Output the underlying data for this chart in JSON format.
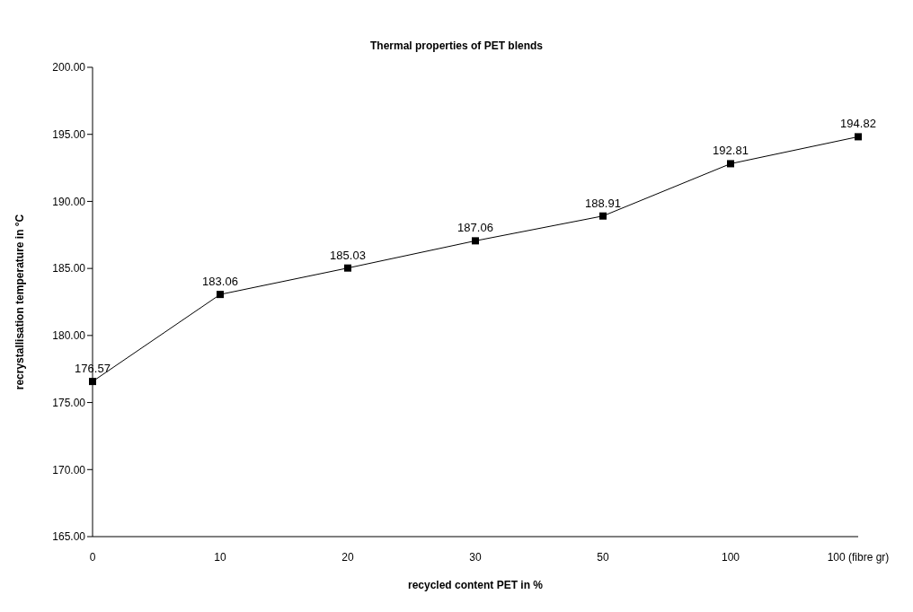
{
  "chart_data": {
    "type": "line",
    "title": "Thermal properties of PET blends",
    "xlabel": "recycled content PET in %",
    "ylabel": "recrystallisation temperature in °C",
    "categories": [
      "0",
      "10",
      "20",
      "30",
      "50",
      "100",
      "100 (fibre gr)"
    ],
    "series": [
      {
        "color": "#000000",
        "values": [
          176.57,
          183.06,
          185.03,
          187.06,
          188.91,
          192.81,
          194.82
        ]
      }
    ],
    "ylim": [
      165,
      200
    ],
    "yticks": [
      {
        "value": 165,
        "label": "165.00"
      },
      {
        "value": 170,
        "label": "170.00"
      },
      {
        "value": 175,
        "label": "175.00"
      },
      {
        "value": 180,
        "label": "180.00"
      },
      {
        "value": 185,
        "label": "185.00"
      },
      {
        "value": 190,
        "label": "190.00"
      },
      {
        "value": 195,
        "label": "195.00"
      },
      {
        "value": 200,
        "label": "200.00"
      }
    ],
    "data_labels": true,
    "marker": "square",
    "line_style": "solid",
    "grid": false,
    "legend": false
  }
}
